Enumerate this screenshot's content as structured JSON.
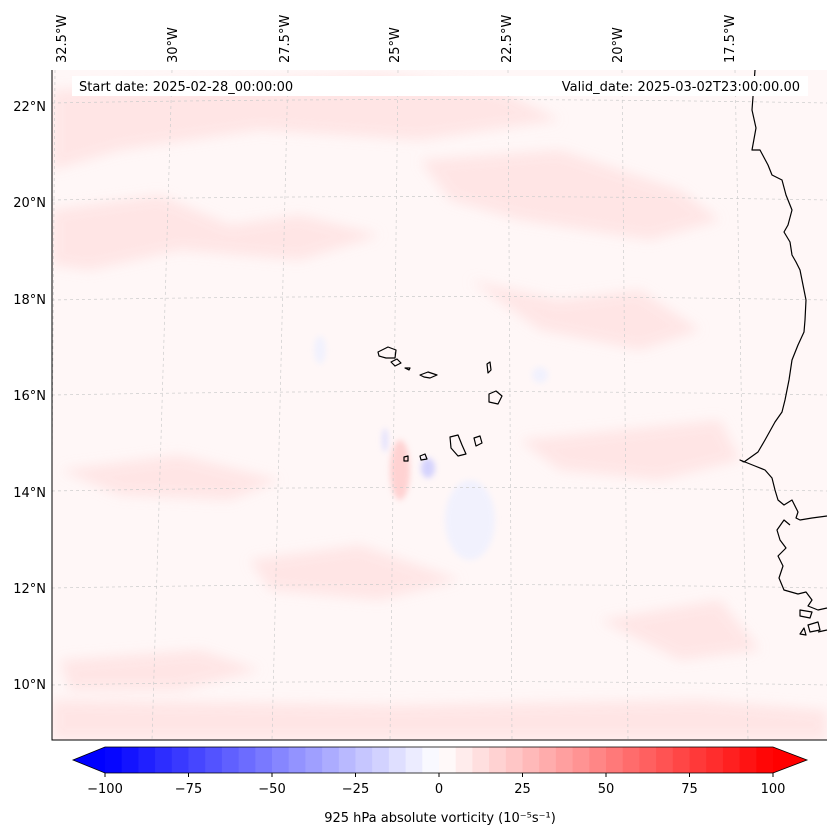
{
  "map": {
    "start_label": "Start date: 2025-02-28_00:00:00",
    "valid_label": "Valid_date: 2025-03-02T23:00:00.00",
    "lon_labels": [
      "32.5°W",
      "30°W",
      "27.5°W",
      "25°W",
      "22.5°W",
      "20°W",
      "17.5°W"
    ],
    "lat_labels": [
      "22°N",
      "20°N",
      "18°N",
      "16°N",
      "14°N",
      "12°N",
      "10°N"
    ],
    "coastline_color": "#000000",
    "gridline_color": "#cccccc",
    "field_tint": "#fff6f6"
  },
  "colorbar": {
    "label": "925 hPa absolute vorticity (10⁻⁵s⁻¹)",
    "ticks": [
      "−100",
      "−75",
      "−50",
      "−25",
      "0",
      "25",
      "50",
      "75",
      "100"
    ],
    "min_color": "#0000ff",
    "mid_color": "#ffffff",
    "max_color": "#ff0000"
  }
}
